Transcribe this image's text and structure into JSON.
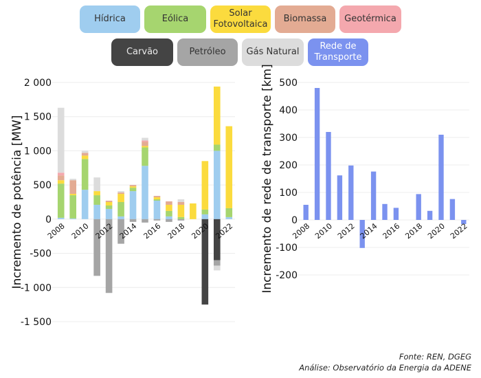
{
  "legend": {
    "items": [
      {
        "key": "hidrica",
        "label": "Hídrica",
        "color": "#9fcdef"
      },
      {
        "key": "eolica",
        "label": "Eólica",
        "color": "#a6d56f"
      },
      {
        "key": "solar",
        "label": "Solar\nFotovoltaica",
        "color": "#fbdb3e"
      },
      {
        "key": "biomassa",
        "label": "Biomassa",
        "color": "#e3ab93"
      },
      {
        "key": "geotermica",
        "label": "Geotérmica",
        "color": "#f4a8ae"
      },
      {
        "key": "carvao",
        "label": "Carvão",
        "color": "#444444"
      },
      {
        "key": "petroleo",
        "label": "Petróleo",
        "color": "#a5a5a5"
      },
      {
        "key": "gas_natural",
        "label": "Gás Natural",
        "color": "#dcdcdc"
      },
      {
        "key": "rede",
        "label": "Rede de\nTransporte",
        "color": "#7b92ef"
      }
    ]
  },
  "chart_data": [
    {
      "type": "bar",
      "stacked": true,
      "ylabel": "Incremento de potência [MW]",
      "ylim": [
        -1500,
        2000
      ],
      "yticks": [
        -1500,
        -1000,
        -500,
        0,
        500,
        1000,
        1500,
        2000
      ],
      "ytick_labels": [
        "-1 500",
        "-1 000",
        "-500",
        "0",
        "500",
        "1 000",
        "1 500",
        "2 000"
      ],
      "xtick_labels": [
        "2008",
        "2010",
        "2012",
        "2014",
        "2016",
        "2018",
        "2020",
        "2022"
      ],
      "categories": [
        "2008",
        "2009",
        "2010",
        "2011",
        "2012",
        "2013",
        "2014",
        "2015",
        "2016",
        "2017",
        "2018",
        "2019",
        "2020",
        "2021",
        "2022"
      ],
      "series": [
        {
          "name": "Hídrica",
          "key": "hidrica",
          "values": [
            20,
            10,
            430,
            210,
            150,
            40,
            410,
            780,
            270,
            40,
            0,
            0,
            70,
            1000,
            30
          ]
        },
        {
          "name": "Eólica",
          "key": "eolica",
          "values": [
            500,
            340,
            450,
            140,
            50,
            210,
            50,
            270,
            20,
            80,
            30,
            0,
            70,
            90,
            130
          ]
        },
        {
          "name": "Solar Fotovoltaica",
          "key": "solar",
          "values": [
            50,
            20,
            50,
            60,
            50,
            120,
            20,
            20,
            30,
            90,
            180,
            230,
            710,
            850,
            1200
          ]
        },
        {
          "name": "Biomassa",
          "key": "biomassa",
          "values": [
            70,
            200,
            40,
            0,
            20,
            20,
            20,
            60,
            20,
            50,
            40,
            0,
            0,
            0,
            0
          ]
        },
        {
          "name": "Geotérmica",
          "key": "geotermica",
          "values": [
            40,
            0,
            0,
            0,
            0,
            0,
            0,
            20,
            0,
            0,
            0,
            0,
            0,
            0,
            0
          ]
        },
        {
          "name": "Carvão",
          "key": "carvao",
          "values": [
            0,
            0,
            0,
            0,
            0,
            0,
            0,
            0,
            0,
            0,
            0,
            0,
            -1250,
            -600,
            0
          ]
        },
        {
          "name": "Petróleo",
          "key": "petroleo",
          "values": [
            0,
            0,
            0,
            -830,
            -1080,
            -360,
            -40,
            -50,
            -20,
            -40,
            -20,
            0,
            0,
            -80,
            0
          ]
        },
        {
          "name": "Gás Natural",
          "key": "gas_natural",
          "values": [
            950,
            20,
            30,
            200,
            0,
            20,
            0,
            40,
            0,
            0,
            40,
            0,
            0,
            -70,
            0
          ]
        }
      ]
    },
    {
      "type": "bar",
      "ylabel": "Incremento de rede de transporte [km]",
      "ylim": [
        -200,
        500
      ],
      "yticks": [
        -200,
        -100,
        0,
        100,
        200,
        300,
        400,
        500
      ],
      "ytick_labels": [
        "-200",
        "-100",
        "0",
        "100",
        "200",
        "300",
        "400",
        "500"
      ],
      "xtick_labels": [
        "2008",
        "2010",
        "2012",
        "2014",
        "2016",
        "2018",
        "2020",
        "2022"
      ],
      "categories": [
        "2008",
        "2009",
        "2010",
        "2011",
        "2012",
        "2013",
        "2014",
        "2015",
        "2016",
        "2017",
        "2018",
        "2019",
        "2020",
        "2021",
        "2022"
      ],
      "series": [
        {
          "name": "Rede de Transporte",
          "key": "rede",
          "values": [
            55,
            480,
            320,
            162,
            198,
            -102,
            176,
            58,
            44,
            0,
            94,
            33,
            310,
            76,
            -15
          ]
        }
      ]
    }
  ],
  "footer": {
    "source": "Fonte: REN, DGEG",
    "analysis": "Análise: Observatório da Energia da ADENE"
  }
}
